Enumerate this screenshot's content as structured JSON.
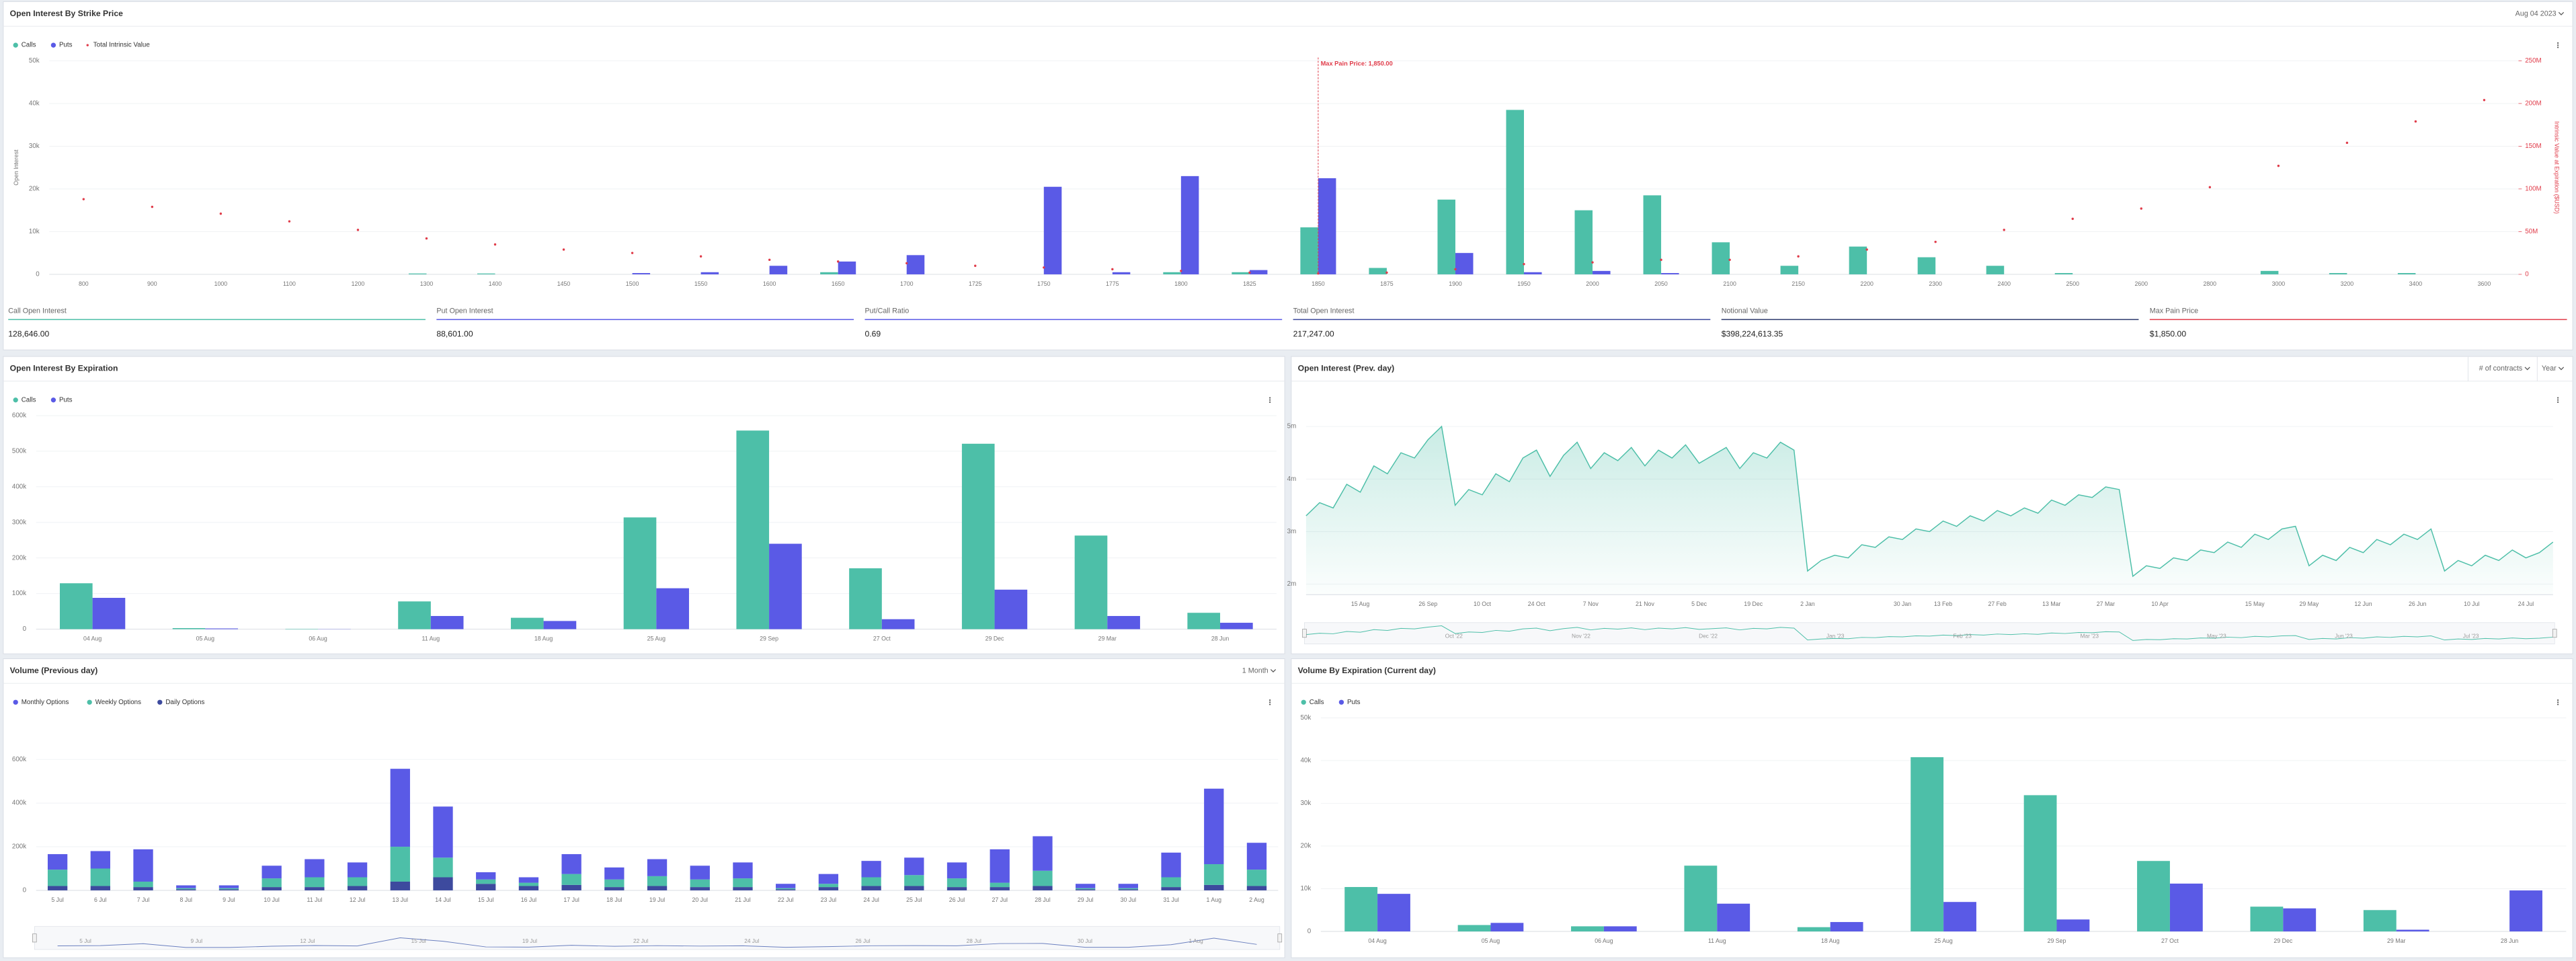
{
  "chart_data": [
    {
      "type": "bar",
      "title": "Open Interest By Strike Price",
      "controls": [
        "Aug 04 2023"
      ],
      "y_label": "Open Interest",
      "y2_label": "Intrinsic Value at Expiration ($USD)",
      "annotation": {
        "text": "Max Pain Price: 1,850.00",
        "at": "1850"
      },
      "categories": [
        "800",
        "900",
        "1000",
        "1100",
        "1200",
        "1300",
        "1400",
        "1450",
        "1500",
        "1550",
        "1600",
        "1650",
        "1700",
        "1725",
        "1750",
        "1775",
        "1800",
        "1825",
        "1850",
        "1875",
        "1900",
        "1950",
        "2000",
        "2050",
        "2100",
        "2150",
        "2200",
        "2300",
        "2400",
        "2500",
        "2600",
        "2800",
        "3000",
        "3200",
        "3400",
        "3600"
      ],
      "series": [
        {
          "name": "Calls",
          "color": "#4dbfa8",
          "values": [
            0,
            0,
            0,
            0,
            0,
            200,
            200,
            0,
            0,
            0,
            0,
            500,
            0,
            0,
            0,
            0,
            500,
            500,
            11000,
            1500,
            17500,
            38500,
            15000,
            18500,
            7500,
            2000,
            6500,
            4000,
            2000,
            300,
            0,
            0,
            800,
            300,
            300,
            0
          ]
        },
        {
          "name": "Puts",
          "color": "#5a5ae6",
          "values": [
            0,
            0,
            0,
            0,
            0,
            0,
            0,
            0,
            300,
            500,
            2000,
            3000,
            4500,
            0,
            20500,
            500,
            23000,
            1000,
            22500,
            0,
            5000,
            500,
            800,
            300,
            0,
            0,
            0,
            0,
            0,
            0,
            0,
            0,
            0,
            0,
            0,
            0
          ]
        },
        {
          "name": "Total Intrinsic Value",
          "type": "scatter",
          "axis": "y2",
          "color": "#e03c4a",
          "values": [
            88000000,
            79000000,
            71000000,
            62000000,
            52000000,
            42000000,
            35000000,
            29000000,
            25000000,
            21000000,
            17000000,
            15000000,
            13000000,
            10000000,
            8000000,
            6000000,
            4000000,
            2000000,
            1000000,
            2000000,
            6000000,
            12000000,
            14000000,
            17000000,
            17000000,
            21000000,
            29000000,
            38000000,
            52000000,
            65000000,
            77000000,
            102000000,
            127000000,
            154000000,
            179000000,
            204000000
          ]
        }
      ],
      "ylim": [
        0,
        50000
      ],
      "yticks": [
        0,
        {
          "value": 10000,
          "label": "10k"
        },
        {
          "value": 20000,
          "label": "20k"
        },
        {
          "value": 30000,
          "label": "30k"
        },
        {
          "value": 40000,
          "label": "40k"
        },
        {
          "value": 50000,
          "label": "50k"
        }
      ],
      "y2lim": [
        0,
        250000000
      ],
      "y2ticks": [
        0,
        {
          "value": 50000000,
          "label": "50M"
        },
        {
          "value": 100000000,
          "label": "100M"
        },
        {
          "value": 150000000,
          "label": "150M"
        },
        {
          "value": 200000000,
          "label": "200M"
        },
        {
          "value": 250000000,
          "label": "250M"
        }
      ],
      "grid": true
    },
    {
      "type": "bar",
      "title": "Open Interest By Expiration",
      "categories": [
        "04 Aug",
        "05 Aug",
        "06 Aug",
        "11 Aug",
        "18 Aug",
        "25 Aug",
        "29 Sep",
        "27 Oct",
        "29 Dec",
        "29 Mar",
        "28 Jun"
      ],
      "series": [
        {
          "name": "Calls",
          "color": "#4dbfa8",
          "values": [
            129000,
            3000,
            1000,
            78000,
            32000,
            314000,
            558000,
            171000,
            521000,
            263000,
            46000
          ]
        },
        {
          "name": "Puts",
          "color": "#5a5ae6",
          "values": [
            88000,
            2000,
            500,
            37000,
            23000,
            115000,
            240000,
            28000,
            111000,
            37000,
            18000
          ]
        }
      ],
      "ylim": [
        0,
        600000
      ],
      "yticks": [
        0,
        {
          "value": 100000,
          "label": "100k"
        },
        {
          "value": 200000,
          "label": "200k"
        },
        {
          "value": 300000,
          "label": "300k"
        },
        {
          "value": 400000,
          "label": "400k"
        },
        {
          "value": 500000,
          "label": "500k"
        },
        {
          "value": 600000,
          "label": "600k"
        }
      ],
      "grid": true
    },
    {
      "type": "area",
      "title": "Open Interest (Prev. day)",
      "controls": [
        "# of contracts",
        "Year"
      ],
      "categories": [
        null,
        null,
        null,
        null,
        "15 Aug",
        null,
        null,
        null,
        null,
        "26 Sep",
        null,
        null,
        null,
        "10 Oct",
        null,
        null,
        null,
        "24 Oct",
        null,
        null,
        null,
        "7 Nov",
        null,
        null,
        null,
        "21 Nov",
        null,
        null,
        null,
        "5 Dec",
        null,
        null,
        null,
        "19 Dec",
        null,
        null,
        null,
        "2 Jan",
        null,
        null,
        null,
        null,
        null,
        null,
        "30 Jan",
        null,
        null,
        "13 Feb",
        null,
        null,
        null,
        "27 Feb",
        null,
        null,
        null,
        "13 Mar",
        null,
        null,
        null,
        "27 Mar",
        null,
        null,
        null,
        "10 Apr",
        null,
        null,
        null,
        null,
        null,
        null,
        "15 May",
        null,
        null,
        null,
        "29 May",
        null,
        null,
        null,
        "12 Jun",
        null,
        null,
        null,
        "26 Jun",
        null,
        null,
        null,
        "10 Jul",
        null,
        null,
        null,
        "24 Jul",
        null,
        null
      ],
      "series": [
        {
          "name": "Open Interest",
          "color": "#4dbfa8",
          "values": [
            3300000,
            3550000,
            3450000,
            3900000,
            3750000,
            4250000,
            4100000,
            4500000,
            4400000,
            4750000,
            5000000,
            3500000,
            3800000,
            3700000,
            4100000,
            3950000,
            4400000,
            4550000,
            4050000,
            4450000,
            4700000,
            4200000,
            4500000,
            4350000,
            4600000,
            4250000,
            4550000,
            4400000,
            4650000,
            4300000,
            4450000,
            4600000,
            4200000,
            4500000,
            4400000,
            4700000,
            4550000,
            2250000,
            2450000,
            2550000,
            2500000,
            2750000,
            2700000,
            2900000,
            2850000,
            3050000,
            3000000,
            3200000,
            3100000,
            3300000,
            3200000,
            3400000,
            3300000,
            3450000,
            3350000,
            3600000,
            3500000,
            3700000,
            3650000,
            3850000,
            3800000,
            2150000,
            2350000,
            2300000,
            2500000,
            2450000,
            2650000,
            2600000,
            2800000,
            2700000,
            2950000,
            2850000,
            3050000,
            3100000,
            2350000,
            2550000,
            2450000,
            2700000,
            2600000,
            2850000,
            2750000,
            2950000,
            2850000,
            3050000,
            2250000,
            2450000,
            2350000,
            2550000,
            2450000,
            2650000,
            2500000,
            2600000,
            2800000
          ]
        }
      ],
      "navigator": [
        "Oct '22",
        "Nov '22",
        "Dec '22",
        "Jan '23",
        "Feb '23",
        "Mar '23",
        "May '23",
        "Jun '23",
        "Jul '23"
      ],
      "ylim": [
        1800000,
        5300000
      ],
      "yticks": [
        {
          "value": 2000000,
          "label": "2m"
        },
        {
          "value": 3000000,
          "label": "3m"
        },
        {
          "value": 4000000,
          "label": "4m"
        },
        {
          "value": 5000000,
          "label": "5m"
        }
      ],
      "grid": true
    },
    {
      "type": "bar",
      "stacked": true,
      "title": "Volume (Previous day)",
      "controls": [
        "1 Month"
      ],
      "categories": [
        "5 Jul",
        "6 Jul",
        "7 Jul",
        "8 Jul",
        "9 Jul",
        "10 Jul",
        "11 Jul",
        "12 Jul",
        "13 Jul",
        "14 Jul",
        "15 Jul",
        "16 Jul",
        "17 Jul",
        "18 Jul",
        "19 Jul",
        "20 Jul",
        "21 Jul",
        "22 Jul",
        "23 Jul",
        "24 Jul",
        "25 Jul",
        "26 Jul",
        "27 Jul",
        "28 Jul",
        "29 Jul",
        "30 Jul",
        "31 Jul",
        "1 Aug",
        "2 Aug"
      ],
      "series": [
        {
          "name": "Monthly Options",
          "color": "#5a5ae6",
          "values": [
            71000,
            80000,
            148000,
            13000,
            13000,
            58000,
            83000,
            68000,
            357000,
            234000,
            33000,
            25000,
            91000,
            55000,
            78000,
            63000,
            73000,
            20000,
            45000,
            75000,
            80000,
            73000,
            153000,
            158000,
            20000,
            20000,
            113000,
            346000,
            123000
          ]
        },
        {
          "name": "Weekly Options",
          "color": "#4dbfa8",
          "values": [
            75000,
            80000,
            25000,
            5000,
            5000,
            40000,
            45000,
            40000,
            160000,
            90000,
            20000,
            15000,
            50000,
            35000,
            45000,
            35000,
            40000,
            5000,
            15000,
            40000,
            50000,
            40000,
            20000,
            70000,
            5000,
            5000,
            45000,
            95000,
            75000
          ]
        },
        {
          "name": "Daily Options",
          "color": "#3d4a9e",
          "values": [
            20000,
            20000,
            15000,
            5000,
            5000,
            15000,
            15000,
            20000,
            40000,
            60000,
            30000,
            20000,
            25000,
            15000,
            20000,
            15000,
            15000,
            5000,
            15000,
            20000,
            20000,
            15000,
            15000,
            20000,
            5000,
            5000,
            15000,
            25000,
            20000
          ]
        }
      ],
      "navigator": [
        "5 Jul",
        "9 Jul",
        "12 Jul",
        "15 Jul",
        "19 Jul",
        "22 Jul",
        "24 Jul",
        "26 Jul",
        "28 Jul",
        "30 Jul",
        "1 Aug"
      ],
      "ylim": [
        0,
        700000
      ],
      "yticks": [
        0,
        {
          "value": 200000,
          "label": "200k"
        },
        {
          "value": 400000,
          "label": "400k"
        },
        {
          "value": 600000,
          "label": "600k"
        }
      ],
      "grid": true
    },
    {
      "type": "bar",
      "title": "Volume By Expiration (Current day)",
      "categories": [
        "04 Aug",
        "05 Aug",
        "06 Aug",
        "11 Aug",
        "18 Aug",
        "25 Aug",
        "29 Sep",
        "27 Oct",
        "29 Dec",
        "29 Mar",
        "28 Jun"
      ],
      "series": [
        {
          "name": "Calls",
          "color": "#4dbfa8",
          "values": [
            10400,
            1500,
            1200,
            15400,
            1000,
            40800,
            31900,
            16500,
            5800,
            5000,
            0
          ]
        },
        {
          "name": "Puts",
          "color": "#5a5ae6",
          "values": [
            8800,
            2000,
            1200,
            6500,
            2200,
            6900,
            2800,
            11200,
            5400,
            400,
            9600
          ]
        }
      ],
      "ylim": [
        0,
        50000
      ],
      "yticks": [
        0,
        {
          "value": 10000,
          "label": "10k"
        },
        {
          "value": 20000,
          "label": "20k"
        },
        {
          "value": 30000,
          "label": "30k"
        },
        {
          "value": 40000,
          "label": "40k"
        },
        {
          "value": 50000,
          "label": "50k"
        }
      ],
      "grid": true
    }
  ],
  "summary": [
    {
      "label": "Call Open Interest",
      "value": "128,646.00",
      "color": "#4dbfa8"
    },
    {
      "label": "Put Open Interest",
      "value": "88,601.00",
      "color": "#5a5ae6"
    },
    {
      "label": "Put/Call Ratio",
      "value": "0.69",
      "color": "#5a5ae6"
    },
    {
      "label": "Total Open Interest",
      "value": "217,247.00",
      "color": "#3d4a9e"
    },
    {
      "label": "Notional Value",
      "value": "$398,224,613.35",
      "color": "#2e3a6e"
    },
    {
      "label": "Max Pain Price",
      "value": "$1,850.00",
      "color": "#e03c4a"
    }
  ]
}
